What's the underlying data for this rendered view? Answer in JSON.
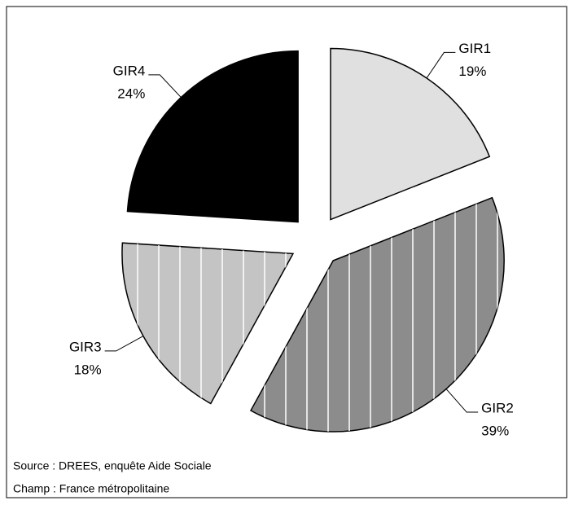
{
  "chart_data": {
    "type": "pie",
    "categories": [
      "GIR1",
      "GIR2",
      "GIR3",
      "GIR4"
    ],
    "values": [
      19,
      39,
      18,
      24
    ],
    "value_labels": [
      "19%",
      "39%",
      "18%",
      "24%"
    ],
    "colors": [
      "#e0e0e0",
      "#8c8c8c",
      "#c4c4c4",
      "#000000"
    ],
    "notes": [
      "Source : DREES, enquête Aide Sociale",
      "Champ : France métropolitaine"
    ]
  }
}
